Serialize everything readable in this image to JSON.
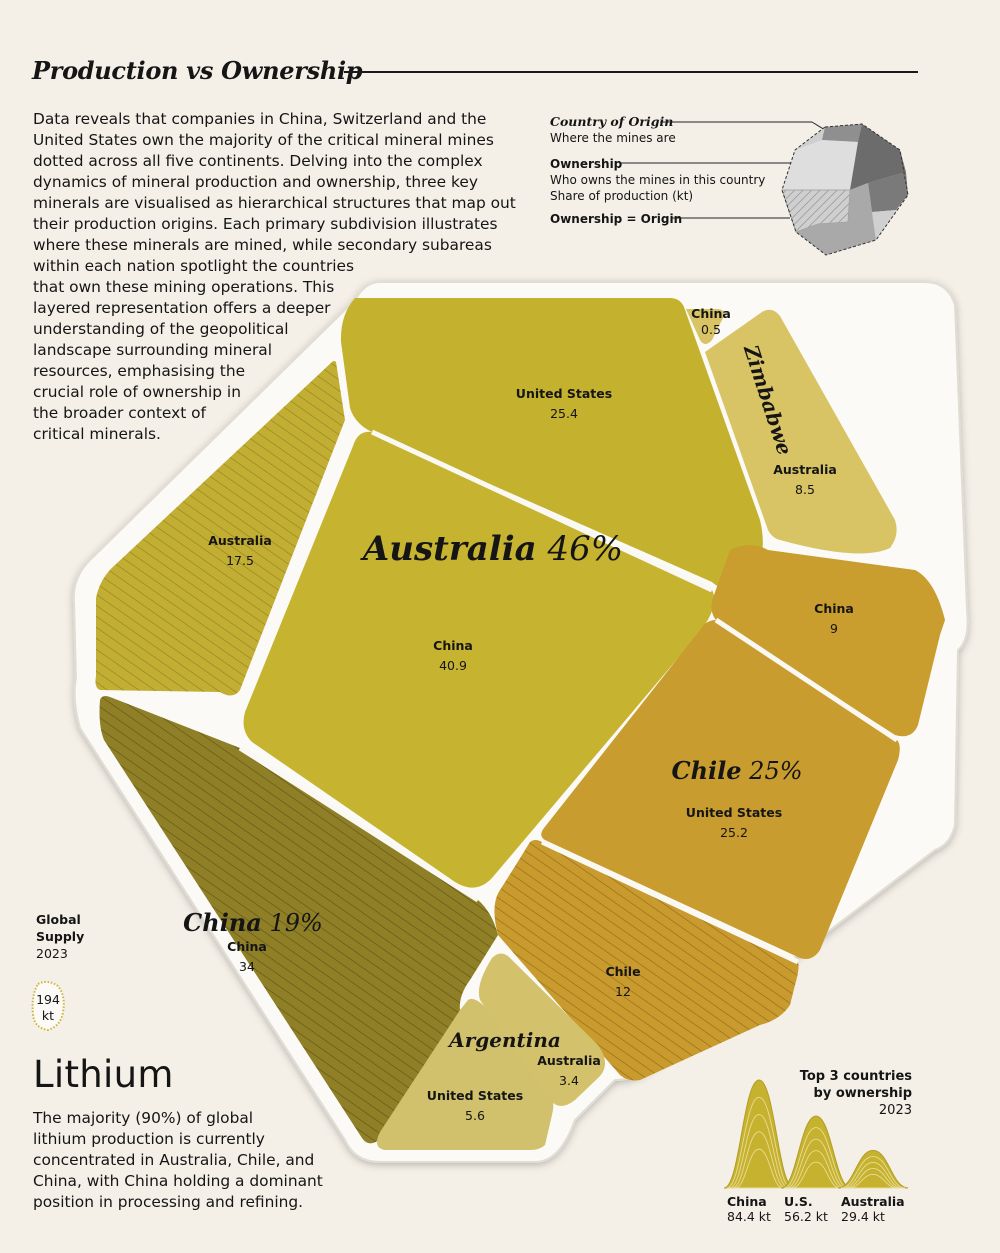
{
  "header": {
    "title": "Production vs Ownership",
    "intro_lines": [
      "Data reveals that companies in China, Switzerland and the",
      "United States own the majority of the critical mineral mines",
      "dotted across all five continents. Delving into the complex",
      "dynamics of mineral production and ownership, three key",
      "minerals are visualised as hierarchical structures that map out",
      "their production origins. Each primary subdivision illustrates",
      "where these minerals are mined, while secondary subareas",
      "within each nation spotlight the countries",
      "that own these mining operations. This",
      "layered representation offers a deeper",
      "understanding of the geopolitical",
      "landscape surrounding mineral",
      "resources, emphasising the",
      "crucial role of ownership in",
      "the broader context of",
      "critical minerals."
    ]
  },
  "legend": {
    "origin_title": "Country of Origin",
    "origin_sub": "Where the mines are",
    "ownership_title": "Ownership",
    "ownership_sub1": "Who owns the mines in this country",
    "ownership_sub2": "Share of production (kt)",
    "equal_title": "Ownership = Origin"
  },
  "colors": {
    "background": "#f4f0e8",
    "australia": "#c4b22f",
    "chile": "#c99d2e",
    "china": "#8e7e27",
    "argentina": "#d1c06c",
    "zimbabwe": "#d8c464",
    "rim": "#ffffff"
  },
  "chart_data": {
    "type": "treemap",
    "mineral": "Lithium",
    "origins": [
      {
        "name": "Australia",
        "share_pct": 46,
        "owners": [
          {
            "owner": "United States",
            "value": 25.4
          },
          {
            "owner": "China",
            "value": 40.9
          },
          {
            "owner": "Australia",
            "value": 17.5,
            "same_as_origin": true
          }
        ]
      },
      {
        "name": "Chile",
        "share_pct": 25,
        "owners": [
          {
            "owner": "China",
            "value": 9
          },
          {
            "owner": "United States",
            "value": 25.2
          },
          {
            "owner": "Chile",
            "value": 12,
            "same_as_origin": true
          }
        ]
      },
      {
        "name": "China",
        "share_pct": 19,
        "owners": [
          {
            "owner": "China",
            "value": 34,
            "same_as_origin": true
          }
        ]
      },
      {
        "name": "Zimbabwe",
        "owners": [
          {
            "owner": "China",
            "value": 0.5
          },
          {
            "owner": "Australia",
            "value": 8.5
          }
        ]
      },
      {
        "name": "Argentina",
        "owners": [
          {
            "owner": "United States",
            "value": 5.6
          },
          {
            "owner": "Australia",
            "value": 3.4
          }
        ]
      }
    ],
    "global_supply": {
      "label_1": "Global",
      "label_2": "Supply",
      "year": "2023",
      "value": "194",
      "unit": "kt"
    },
    "top3": {
      "title_1": "Top 3 countries",
      "title_2": "by ownership",
      "year": "2023",
      "items": [
        {
          "country": "China",
          "value": 84.4,
          "label": "84.4 kt"
        },
        {
          "country": "U.S.",
          "value": 56.2,
          "label": "56.2 kt"
        },
        {
          "country": "Australia",
          "value": 29.4,
          "label": "29.4 kt"
        }
      ]
    }
  },
  "lithium": {
    "title": "Lithium",
    "desc_lines": [
      "The majority (90%) of global",
      "lithium production is currently",
      "concentrated in Australia, Chile, and",
      "China, with China holding a dominant",
      "position in processing and refining."
    ]
  }
}
